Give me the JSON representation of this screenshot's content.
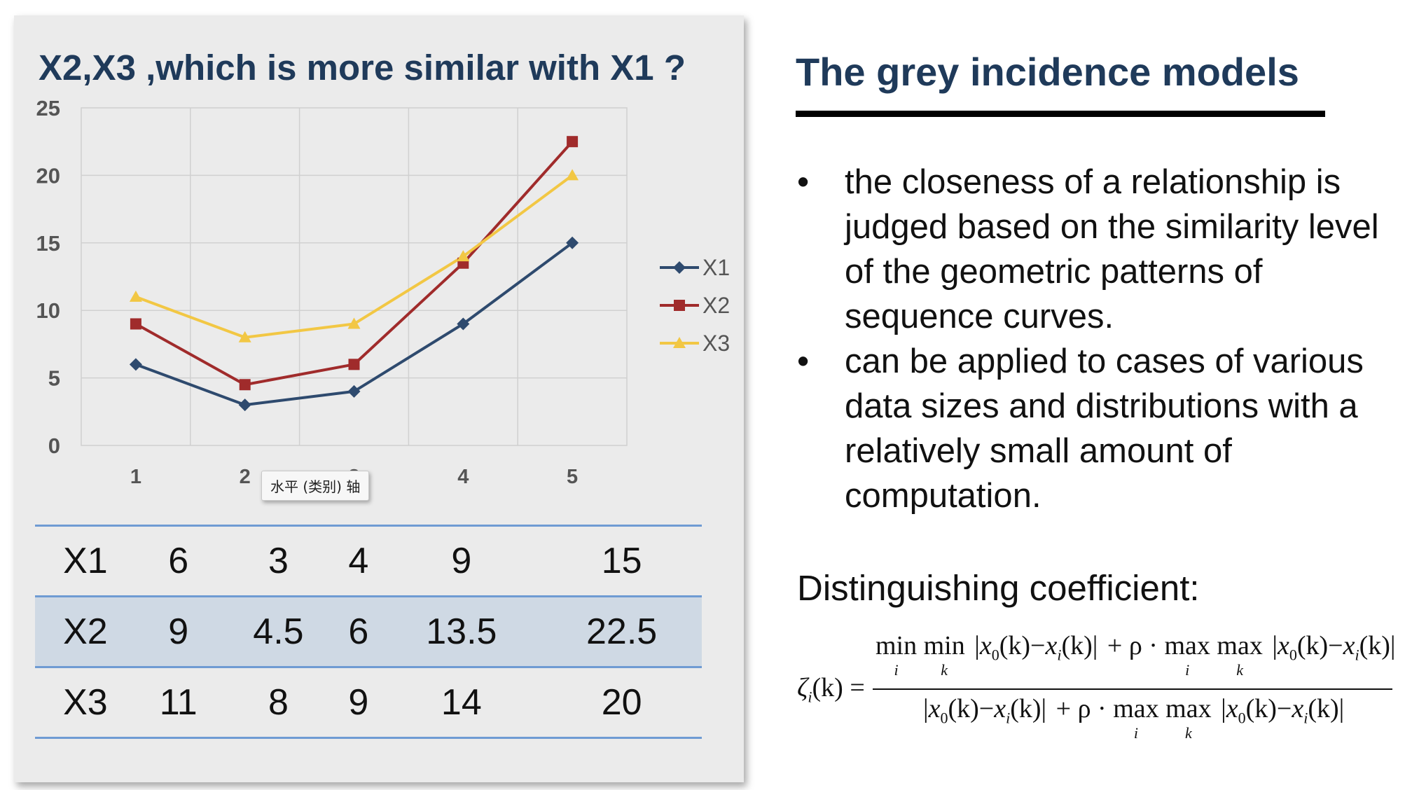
{
  "chart_data": {
    "type": "line",
    "title": "X2,X3 ,which is more similar with X1 ?",
    "categories": [
      "1",
      "2",
      "3",
      "4",
      "5"
    ],
    "series": [
      {
        "name": "X1",
        "values": [
          6,
          3,
          4,
          9,
          15
        ],
        "color": "#2e4a6e",
        "marker": "diamond"
      },
      {
        "name": "X2",
        "values": [
          9,
          4.5,
          6,
          13.5,
          22.5
        ],
        "color": "#a02b2b",
        "marker": "square"
      },
      {
        "name": "X3",
        "values": [
          11,
          8,
          9,
          14,
          20
        ],
        "color": "#f2c744",
        "marker": "triangle"
      }
    ],
    "ylim": [
      0,
      25
    ],
    "yticks": [
      0,
      5,
      10,
      15,
      20,
      25
    ],
    "grid": true,
    "legend_position": "right"
  },
  "tooltip": "水平 (类别) 轴",
  "table": {
    "rows": [
      {
        "label": "X1",
        "values": [
          "6",
          "3",
          "4",
          "9",
          "15"
        ],
        "shaded": false
      },
      {
        "label": "X2",
        "values": [
          "9",
          "4.5",
          "6",
          "13.5",
          "22.5"
        ],
        "shaded": true
      },
      {
        "label": "X3",
        "values": [
          "11",
          "8",
          "9",
          "14",
          "20"
        ],
        "shaded": false
      }
    ]
  },
  "right": {
    "heading": "The grey incidence models",
    "bullets": [
      {
        "marker": "•",
        "text": "the closeness of a relationship is judged based on the similarity level of the geometric patterns of sequence curves."
      },
      {
        "marker": "•",
        "text": "can be applied to cases of various data sizes and distributions with a relatively small amount of computation."
      }
    ],
    "coefficient_label": "Distinguishing coefficient:"
  },
  "formula": {
    "lhs": "ζ",
    "lhs_sub": "i",
    "lhs_arg": "(k) =",
    "min": "min",
    "max": "max",
    "sub_i": "i",
    "sub_k": "k",
    "abs_term": "x",
    "zero": "0",
    "i": "i",
    "k_arg": "(k)",
    "minus": "−",
    "plus": "+ ρ ·"
  }
}
